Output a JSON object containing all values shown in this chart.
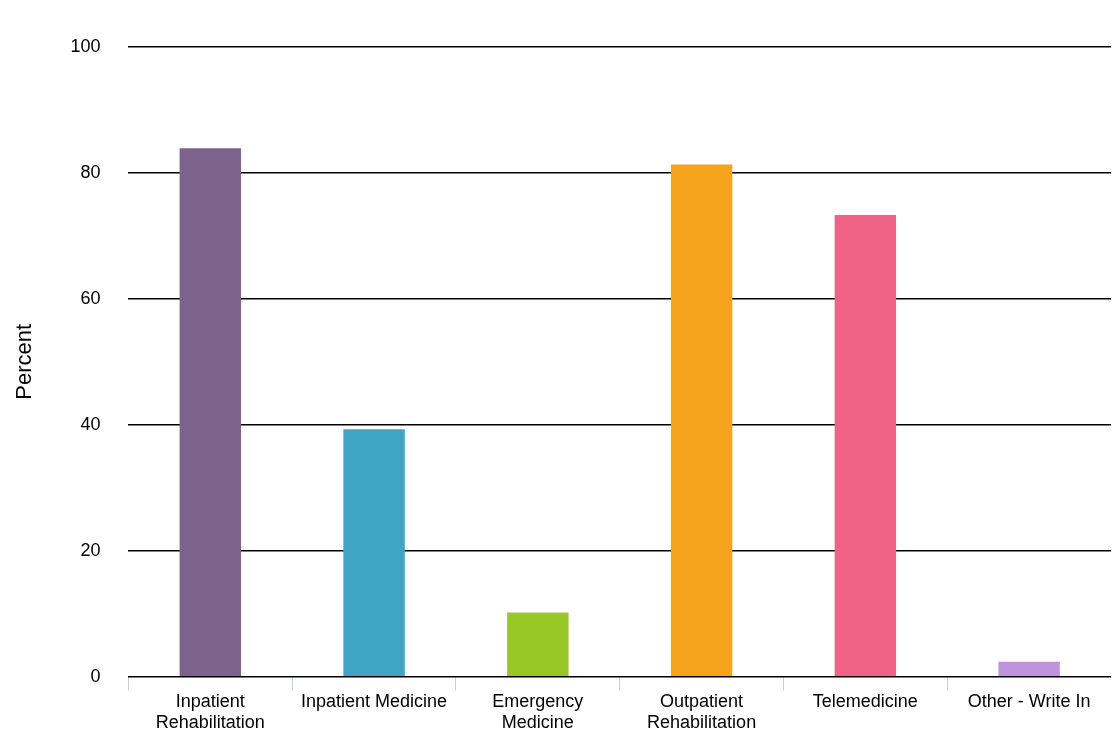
{
  "chart_data": {
    "type": "bar",
    "ylabel": "Percent",
    "categories": [
      "Inpatient Rehabilitation",
      "Inpatient Medicine",
      "Emergency Medicine",
      "Outpatient Rehabilitation",
      "Telemedicine",
      "Other - Write In"
    ],
    "values": [
      83.9,
      39.3,
      10.2,
      81.3,
      73.3,
      2.4
    ],
    "colors": [
      "#7d628e",
      "#40a4c3",
      "#97c826",
      "#f5a41b",
      "#f06386",
      "#bf94dc"
    ],
    "ylim": [
      0,
      100
    ],
    "yticks": [
      0,
      20,
      40,
      60,
      80,
      100
    ],
    "grid": "y",
    "legend": false
  }
}
